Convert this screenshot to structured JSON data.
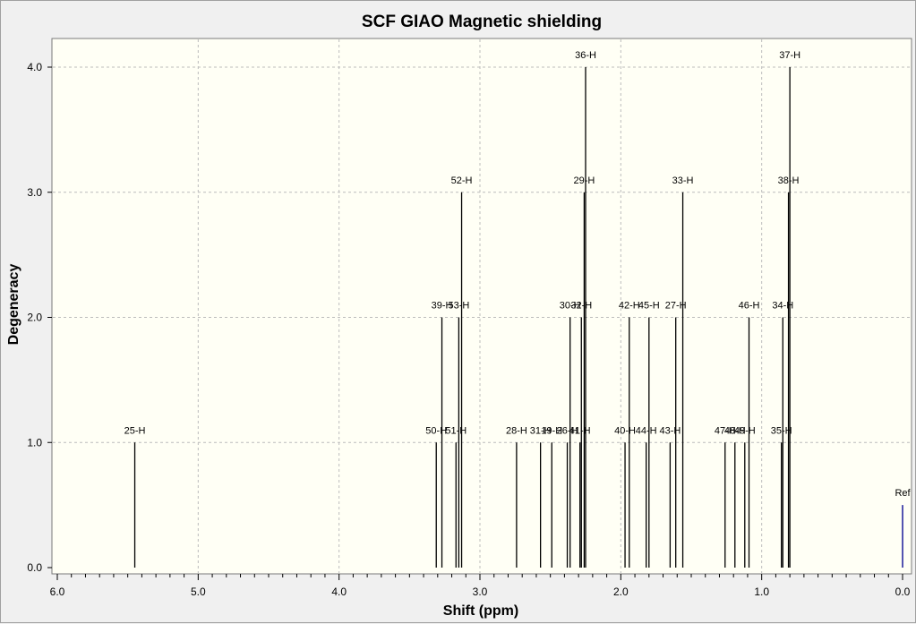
{
  "chart_data": {
    "type": "bar",
    "title": "SCF GIAO Magnetic shielding",
    "xlabel": "Shift (ppm)",
    "ylabel": "Degeneracy",
    "xlim": [
      6.0,
      0.0
    ],
    "ylim": [
      0.0,
      4.0
    ],
    "x_reversed": true,
    "grid": true,
    "x_ticks": [
      "6.0",
      "5.0",
      "4.0",
      "3.0",
      "2.0",
      "1.0",
      "0.0"
    ],
    "y_ticks": [
      "0.0",
      "1.0",
      "2.0",
      "3.0",
      "4.0"
    ],
    "colors": {
      "plot_bg": "#fffff5",
      "peak": "#000000",
      "ref": "#1a1a9a",
      "grid": "#bcbcbc"
    },
    "series": [
      {
        "values": [
          {
            "x": 5.45,
            "y": 1,
            "label": "25-H"
          },
          {
            "x": 3.31,
            "y": 1,
            "label": "50-H"
          },
          {
            "x": 3.27,
            "y": 2,
            "label": "39-H"
          },
          {
            "x": 3.17,
            "y": 1,
            "label": "51-H"
          },
          {
            "x": 3.15,
            "y": 2,
            "label": "53-H"
          },
          {
            "x": 3.13,
            "y": 3,
            "label": "52-H"
          },
          {
            "x": 2.74,
            "y": 1,
            "label": "28-H"
          },
          {
            "x": 2.57,
            "y": 1,
            "label": "31-H"
          },
          {
            "x": 2.49,
            "y": 1,
            "label": "19-H"
          },
          {
            "x": 2.38,
            "y": 1,
            "label": "26-H"
          },
          {
            "x": 2.36,
            "y": 2,
            "label": "30-H"
          },
          {
            "x": 2.29,
            "y": 1,
            "label": "41-H"
          },
          {
            "x": 2.28,
            "y": 2,
            "label": "32-H"
          },
          {
            "x": 2.26,
            "y": 3,
            "label": "29-H"
          },
          {
            "x": 2.25,
            "y": 4,
            "label": "36-H"
          },
          {
            "x": 1.97,
            "y": 1,
            "label": "40-H"
          },
          {
            "x": 1.94,
            "y": 2,
            "label": "42-H"
          },
          {
            "x": 1.82,
            "y": 1,
            "label": "44-H"
          },
          {
            "x": 1.8,
            "y": 2,
            "label": "45-H"
          },
          {
            "x": 1.65,
            "y": 1,
            "label": "43-H"
          },
          {
            "x": 1.61,
            "y": 2,
            "label": "27-H"
          },
          {
            "x": 1.56,
            "y": 3,
            "label": "33-H"
          },
          {
            "x": 1.26,
            "y": 1,
            "label": "47-H"
          },
          {
            "x": 1.19,
            "y": 1,
            "label": "48-H"
          },
          {
            "x": 1.12,
            "y": 1,
            "label": "49-H"
          },
          {
            "x": 1.09,
            "y": 2,
            "label": "46-H"
          },
          {
            "x": 0.86,
            "y": 1,
            "label": "35-H"
          },
          {
            "x": 0.85,
            "y": 2,
            "label": "34-H"
          },
          {
            "x": 0.81,
            "y": 3,
            "label": "38-H"
          },
          {
            "x": 0.8,
            "y": 4,
            "label": "37-H"
          }
        ]
      }
    ],
    "reference": {
      "x": 0.0,
      "y": 0.5,
      "label": "Ref"
    }
  }
}
